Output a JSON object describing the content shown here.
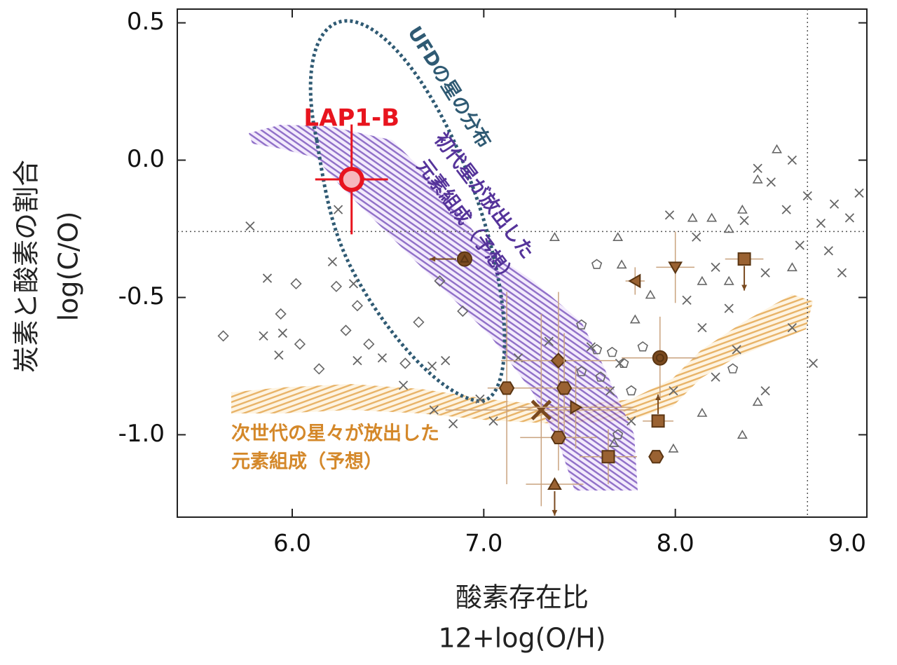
{
  "chart_data": {
    "type": "scatter",
    "x_label": [
      "酸素存在比",
      "12+log(O/H)"
    ],
    "y_label": [
      "炭素と酸素の割合",
      "log(C/O)"
    ],
    "xlim": [
      5.4,
      9.0
    ],
    "ylim": [
      -1.3,
      0.55
    ],
    "xticks": [
      {
        "value": 6,
        "label": "6.0"
      },
      {
        "value": 7,
        "label": "7.0"
      },
      {
        "value": 8,
        "label": "8.0"
      },
      {
        "value": 9,
        "label": "9.0"
      }
    ],
    "yticks": [
      0.5,
      {
        "value": 0,
        "label": "0.0"
      },
      -0.5,
      {
        "value": -1,
        "label": "-1.0"
      }
    ],
    "hline": -0.26,
    "vline": 8.69,
    "annotations": [
      {
        "text": "UFDの星の分布",
        "color": "#2f5a73"
      },
      {
        "text": "初代星が放出した",
        "color": "#55339a"
      },
      {
        "text": "元素組成（予想）",
        "color": "#55339a"
      },
      {
        "text": "次世代の星々が放出した",
        "color": "#d4882a"
      },
      {
        "text": "元素組成（予想）",
        "color": "#d4882a"
      }
    ],
    "series": [
      {
        "marker": "diamond",
        "color": "#666666",
        "x": [
          5.64,
          5.94,
          6.02,
          6.04,
          6.14,
          6.23,
          6.34,
          6.28,
          6.4,
          6.66,
          6.77,
          6.89,
          6.59
        ],
        "values": [
          -0.64,
          -0.56,
          -0.45,
          -0.67,
          -0.76,
          -0.46,
          -0.53,
          -0.62,
          -0.67,
          -0.59,
          -0.44,
          -0.55,
          -0.74
        ]
      },
      {
        "marker": "cross",
        "color": "#666666",
        "x": [
          5.78,
          5.87,
          5.85,
          5.95,
          5.93,
          6.21,
          6.24,
          6.32,
          6.34,
          6.47,
          6.58,
          6.73,
          6.8,
          6.74,
          6.84,
          6.98,
          7.05,
          7.18,
          7.34,
          7.56,
          7.71,
          7.97,
          8.11,
          8.21,
          8.28,
          8.36,
          8.43,
          8.5,
          8.58,
          8.61,
          8.69,
          8.76,
          8.83,
          8.91,
          8.96,
          8.8,
          8.87,
          8.65,
          8.47,
          8.32,
          8.21,
          8.14,
          8.06,
          8.72,
          8.61,
          7.99,
          7.77,
          7.66,
          8.47
        ],
        "values": [
          -0.24,
          -0.43,
          -0.64,
          -0.63,
          -0.71,
          -0.37,
          -0.18,
          -0.45,
          -0.73,
          -0.72,
          -0.82,
          -0.75,
          -0.73,
          -0.91,
          -0.96,
          -0.87,
          -0.95,
          -0.72,
          -0.66,
          -0.68,
          -0.74,
          -0.2,
          -0.28,
          -0.39,
          -0.54,
          -0.22,
          -0.03,
          -0.08,
          -0.18,
          0.0,
          -0.13,
          -0.23,
          -0.16,
          -0.21,
          -0.12,
          -0.33,
          -0.41,
          -0.31,
          -0.41,
          -0.69,
          -0.79,
          -0.61,
          -0.51,
          -0.74,
          -0.61,
          -0.84,
          -0.95,
          -0.84,
          -0.84
        ]
      },
      {
        "marker": "triangle",
        "color": "#666666",
        "x": [
          8.53,
          8.43,
          8.35,
          8.28,
          8.19,
          8.09,
          7.7,
          7.37,
          7.72,
          7.79,
          7.87,
          8.14,
          8.28,
          8.43,
          8.35,
          8.14,
          7.99,
          7.68,
          8.61
        ],
        "values": [
          0.04,
          -0.07,
          -0.18,
          -0.25,
          -0.21,
          -0.21,
          -0.28,
          -0.28,
          -0.38,
          -0.58,
          -0.49,
          -0.44,
          -0.44,
          -0.88,
          -1.0,
          -0.92,
          -1.05,
          -1.03,
          -0.39
        ]
      },
      {
        "marker": "pentagon",
        "color": "#666666",
        "x": [
          7.59,
          7.51,
          7.59,
          7.67,
          7.73,
          7.61,
          7.51,
          7.7,
          7.77,
          8.3,
          7.83
        ],
        "values": [
          -0.38,
          -0.6,
          -0.69,
          -0.7,
          -0.74,
          -0.79,
          -0.77,
          -1.0,
          -0.84,
          -0.76,
          -0.68
        ]
      },
      {
        "color": "#7a4a1f",
        "error_color": "#c9a27e",
        "markers": [
          "circle-triangle",
          "triangle-left",
          "triangle-down",
          "square",
          "bullseye",
          "hexagon",
          "diamond",
          "hexagon",
          "cross",
          "triangle-right",
          "hexagon",
          "square",
          "hexagon",
          "square",
          "triangle-up"
        ],
        "x": [
          6.9,
          7.79,
          8.0,
          8.36,
          7.92,
          7.12,
          7.39,
          7.42,
          7.3,
          7.48,
          7.39,
          7.91,
          7.9,
          7.65,
          7.37
        ],
        "values": [
          -0.36,
          -0.44,
          -0.39,
          -0.36,
          -0.72,
          -0.83,
          -0.73,
          -0.83,
          -0.91,
          -0.9,
          -1.01,
          -0.95,
          -1.08,
          -1.08,
          -1.18
        ],
        "xerr": [
          null,
          0.05,
          0.1,
          0.1,
          0.2,
          0.1,
          0.3,
          0.25,
          0.5,
          0.3,
          0.2,
          0.08,
          null,
          0.15,
          0.15
        ],
        "yerr": [
          null,
          0.05,
          0.13,
          null,
          0.15,
          0.35,
          0.25,
          0.2,
          0.35,
          0.15,
          0.12,
          null,
          null,
          0.1,
          null
        ],
        "limits": [
          "left",
          null,
          null,
          "down",
          null,
          null,
          null,
          null,
          null,
          null,
          null,
          "up",
          null,
          null,
          "down"
        ]
      },
      {
        "name": "LAP1-B",
        "marker": "circle",
        "color": "#e8141e",
        "x": [
          6.31
        ],
        "values": [
          -0.07
        ],
        "xerr": [
          0.19
        ],
        "yerr": [
          0.2
        ]
      }
    ]
  }
}
